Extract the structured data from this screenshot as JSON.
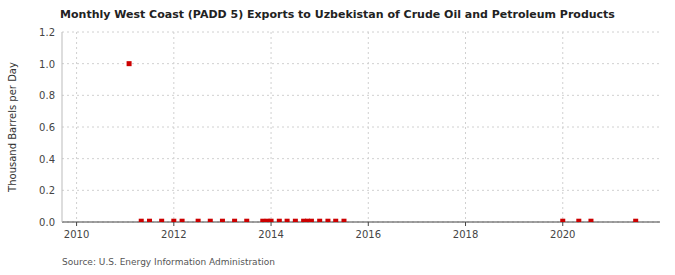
{
  "chart_data": {
    "type": "scatter",
    "title": "Monthly West Coast (PADD 5) Exports to Uzbekistan of Crude Oil and Petroleum Products",
    "ylabel": "Thousand Barrels per Day",
    "source": "Source: U.S. Energy Information Administration",
    "x": [
      2011.08,
      2011.33,
      2011.5,
      2011.75,
      2012.0,
      2012.17,
      2012.5,
      2012.75,
      2013.0,
      2013.25,
      2013.5,
      2013.83,
      2013.92,
      2014.0,
      2014.17,
      2014.33,
      2014.5,
      2014.67,
      2014.75,
      2014.83,
      2015.0,
      2015.17,
      2015.33,
      2015.5,
      2020.0,
      2020.33,
      2020.58,
      2021.5
    ],
    "values": [
      1.0,
      0.005,
      0.005,
      0.005,
      0.005,
      0.005,
      0.005,
      0.005,
      0.005,
      0.005,
      0.005,
      0.005,
      0.005,
      0.005,
      0.005,
      0.005,
      0.005,
      0.005,
      0.005,
      0.005,
      0.005,
      0.005,
      0.005,
      0.005,
      0.005,
      0.005,
      0.005,
      0.005
    ],
    "color": "#cc0000",
    "marker": "square",
    "xlim": [
      2009.7,
      2022.0
    ],
    "xticks": [
      2010,
      2012,
      2014,
      2016,
      2018,
      2020
    ],
    "ylim": [
      0,
      1.2
    ],
    "yticks": [
      {
        "value": 0,
        "label": "0.0"
      },
      0.2,
      0.4,
      0.6,
      0.8,
      {
        "value": 1,
        "label": "1.0"
      },
      1.2
    ],
    "grid": true
  }
}
